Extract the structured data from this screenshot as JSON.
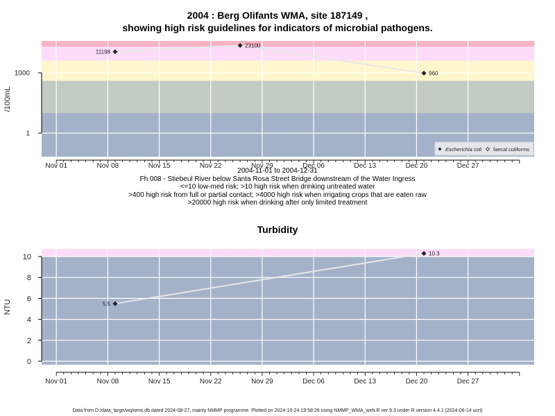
{
  "header": {
    "title_line1": "2004 : Berg Olifants WMA, site 187149 ,",
    "title_line2": "showing high risk guidelines for indicators of microbial pathogens."
  },
  "notes": {
    "date_range": "2004-11-01 to 2004-12-31",
    "site_desc": "Fh 008 - Stiebeul River below Santa Rosa Street Bridge downstream of the Water Ingress",
    "risk1": "<=10 low-med risk; >10 high risk when drinking untreated water",
    "risk2": ">400 high risk from full or partial contact; >4000 high risk when irrigating crops that are eaten raw",
    "risk3": ">20000 high risk when drinking after only limited treatment"
  },
  "footer": "Data from D:/data_large/wq/wms.db dated 2024-08-27, mainly NMMP programme. Plotted on 2024-10-24 19:58:26 using NMMP_WMA_web.R ver 9.3 under R version 4.4.1 (2024-06-14 ucrt)",
  "colors": {
    "band_low": "#a3b2c9",
    "band_mid": "#c3ccc2",
    "band_yellow": "#fef6cc",
    "band_pink": "#fddcf9",
    "band_red": "#f9b3c6",
    "line": "#e8e8e8",
    "grid": "#ffffff"
  },
  "chart_data": [
    {
      "type": "line",
      "title": "",
      "ylabel": "/100mL",
      "y_scale": "log",
      "x_ticks": [
        "Nov 01",
        "Nov 08",
        "Nov 15",
        "Nov 22",
        "Nov 29",
        "Dec 06",
        "Dec 13",
        "Dec 20",
        "Dec 27"
      ],
      "y_ticks": [
        "1",
        "1000"
      ],
      "x_range": [
        "2004-10-30",
        "2005-01-05"
      ],
      "legend": {
        "placement": "bottom-right",
        "entries": [
          "Escherichia coli",
          "faecal coliforms"
        ]
      },
      "series": [
        {
          "name": "Escherichia coli",
          "x": [
            "2004-11-09",
            "2004-11-26",
            "2004-12-21"
          ],
          "values": [
            11198,
            23100,
            960
          ],
          "labels": [
            "11198",
            "23100",
            "960"
          ]
        }
      ],
      "guidelines": [
        10,
        400,
        4000,
        20000
      ]
    },
    {
      "type": "line",
      "title": "Turbidity",
      "ylabel": "NTU",
      "x_ticks": [
        "Nov 01",
        "Nov 08",
        "Nov 15",
        "Nov 22",
        "Nov 29",
        "Dec 06",
        "Dec 13",
        "Dec 20",
        "Dec 27"
      ],
      "y_ticks": [
        "0",
        "2",
        "4",
        "6",
        "8",
        "10"
      ],
      "ylim": [
        -0.4,
        10.7
      ],
      "x_range": [
        "2004-10-30",
        "2005-01-05"
      ],
      "series": [
        {
          "x": [
            "2004-11-09",
            "2004-12-21"
          ],
          "values": [
            5.5,
            10.3
          ],
          "labels": [
            "5.5",
            "10.3"
          ]
        }
      ],
      "guidelines": [
        10
      ]
    }
  ]
}
